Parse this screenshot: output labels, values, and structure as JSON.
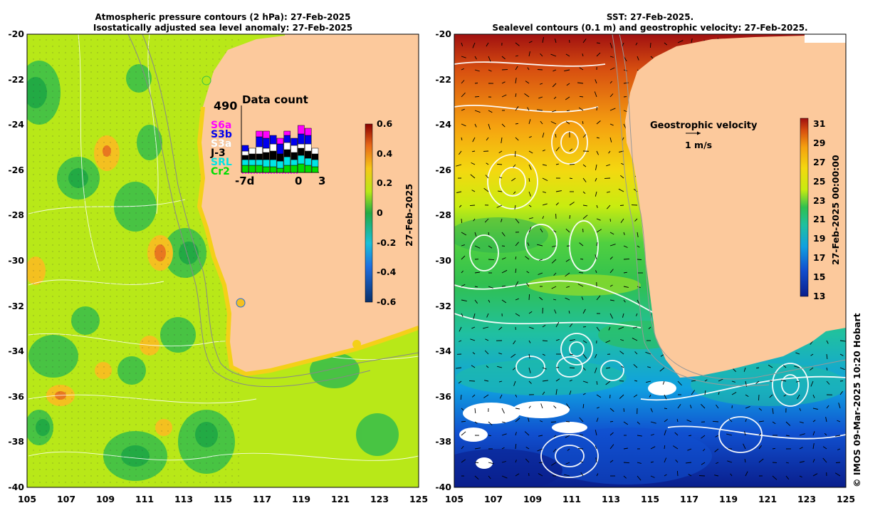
{
  "left_panel": {
    "title_line1": "Atmospheric pressure contours (2 hPa): 27-Feb-2025",
    "title_line2": "Isostatically adjusted sea level anomaly: 27-Feb-2025",
    "colorbar_label": "27-Feb-2025",
    "colorbar_ticks": [
      "0.6",
      "0.4",
      "0.2",
      "0",
      "-0.2",
      "-0.4",
      "-0.6"
    ],
    "data_count": {
      "title": "Data count",
      "max_value": "490",
      "x_labels": [
        "-7d",
        "0",
        "3"
      ],
      "satellites": [
        {
          "name": "S6a",
          "color": "#ff00ff"
        },
        {
          "name": "S3b",
          "color": "#0000ee"
        },
        {
          "name": "S3a",
          "color": "#ffffff"
        },
        {
          "name": "J-3",
          "color": "#000000"
        },
        {
          "name": "SRL",
          "color": "#00e5e5"
        },
        {
          "name": "Cr2",
          "color": "#00dd00"
        }
      ]
    }
  },
  "right_panel": {
    "title_line1": "SST: 27-Feb-2025.",
    "title_line2": "Sealevel contours (0.1 m) and geostrophic velocity: 27-Feb-2025.",
    "velocity_legend_title": "Geostrophic velocity",
    "velocity_legend_scale": "1 m/s",
    "colorbar_label": "27-Feb-2025 00:00:00",
    "colorbar_ticks": [
      "31",
      "29",
      "27",
      "25",
      "23",
      "21",
      "19",
      "17",
      "15",
      "13"
    ],
    "credit": "© IMOS 09-Mar-2025 10:20 Hobart"
  },
  "axes": {
    "y_ticks": [
      "-20",
      "-22",
      "-24",
      "-26",
      "-28",
      "-30",
      "-32",
      "-34",
      "-36",
      "-38",
      "-40"
    ],
    "x_ticks": [
      "105",
      "107",
      "109",
      "111",
      "113",
      "115",
      "117",
      "119",
      "121",
      "123",
      "125"
    ]
  },
  "colors": {
    "land": "#fcc99c",
    "ssla_low": "#08306b",
    "ssla_zero": "#22aa44",
    "ssla_high": "#8b0000",
    "sst_cold": "#0a1e8c",
    "sst_warm": "#a01010"
  }
}
